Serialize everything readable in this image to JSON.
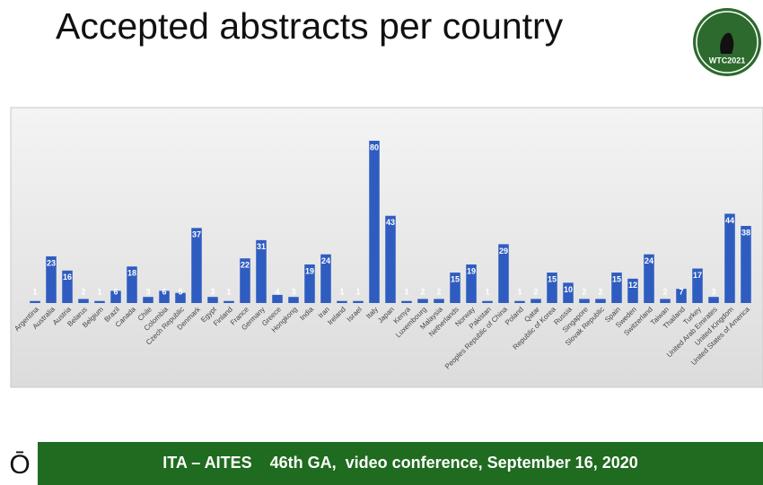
{
  "chart_data": {
    "type": "bar",
    "title": "Accepted abstracts per country",
    "categories": [
      "Argentina",
      "Australia",
      "Austria",
      "Belarus",
      "Belgium",
      "Brazil",
      "Canada",
      "Chile",
      "Colombia",
      "Czech Republic",
      "Denmark",
      "Egypt",
      "Finland",
      "France",
      "Germany",
      "Greece",
      "Hongkong",
      "India",
      "Iran",
      "Ireland",
      "Israel",
      "Italy",
      "Japan",
      "Kenya",
      "Luxembourg",
      "Malaysia",
      "Netherlands",
      "Norway",
      "Pakistan",
      "Peoples Republic of China",
      "Poland",
      "Qatar",
      "Republic of Korea",
      "Russia",
      "Singapore",
      "Slovak Republic",
      "Spain",
      "Sweden",
      "Switzerland",
      "Taiwan",
      "Thailand",
      "Turkey",
      "United Arab Emirates",
      "United Kingdom",
      "United States of America"
    ],
    "values": [
      1,
      23,
      16,
      2,
      1,
      6,
      18,
      3,
      6,
      5,
      37,
      3,
      1,
      22,
      31,
      4,
      3,
      19,
      24,
      1,
      1,
      80,
      43,
      1,
      2,
      2,
      15,
      19,
      1,
      29,
      1,
      2,
      15,
      10,
      2,
      2,
      15,
      12,
      24,
      2,
      7,
      17,
      3,
      44,
      38
    ],
    "color": "#2f5cc0",
    "ylim": [
      0,
      80
    ]
  },
  "logo": {
    "text": "WTC2021"
  },
  "footer": {
    "text": "ITA – AITES    46th GA,  video conference, September 16, 2020"
  }
}
